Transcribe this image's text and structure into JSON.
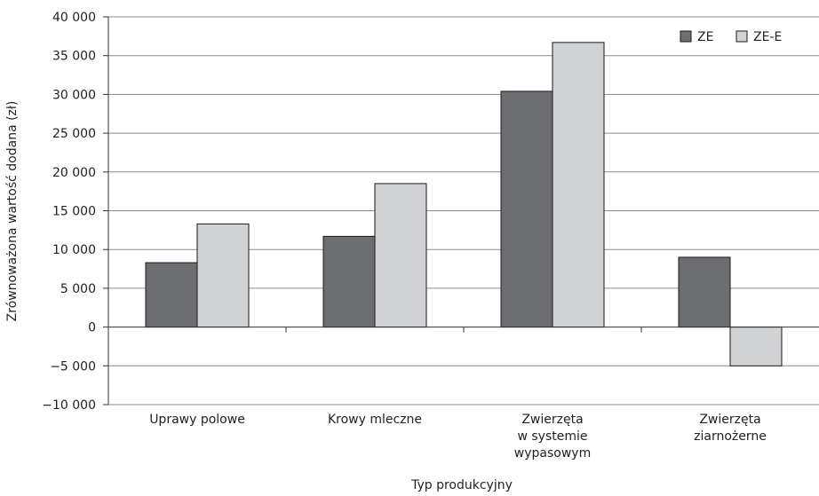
{
  "chart_data": {
    "type": "bar",
    "categories": [
      [
        "Uprawy polowe"
      ],
      [
        "Krowy mleczne"
      ],
      [
        "Zwierzęta",
        "w systemie",
        "wypasowym"
      ],
      [
        "Zwierzęta",
        "ziarnożerne"
      ]
    ],
    "series": [
      {
        "name": "ZE",
        "values": [
          8300,
          11700,
          30400,
          9000
        ],
        "color": "#6d6e71"
      },
      {
        "name": "ZE-E",
        "values": [
          13300,
          18500,
          36700,
          -5000
        ],
        "color": "#d1d2d4"
      }
    ],
    "xlabel": "Typ produkcyjny",
    "ylabel": "Zrównoważona wartość dodana (zł)",
    "ylim": [
      -10000,
      40000
    ],
    "yticks": [
      40000,
      35000,
      30000,
      25000,
      20000,
      15000,
      10000,
      5000,
      0,
      -5000,
      -10000
    ],
    "ytick_labels": [
      "40 000",
      "35 000",
      "30 000",
      "25 000",
      "20 000",
      "15 000",
      "10 000",
      "5 000",
      "0",
      "−5 000",
      "−10 000"
    ],
    "legend_position": "top-right",
    "grid": "horizontal"
  }
}
